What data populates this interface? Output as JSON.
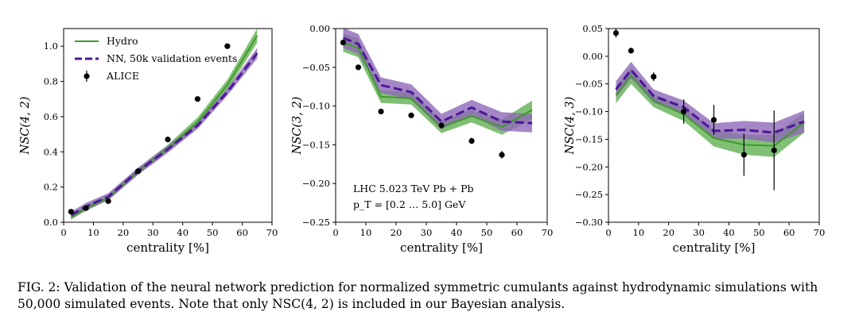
{
  "chart_data": [
    {
      "type": "line",
      "xlabel": "centrality [%]",
      "ylabel": "NSC(4, 2)",
      "xlim": [
        0,
        70
      ],
      "ylim": [
        0.0,
        1.1
      ],
      "xticks": [
        0,
        10,
        20,
        30,
        40,
        50,
        60,
        70
      ],
      "xtick_labels": [
        "0",
        "10",
        "20",
        "30",
        "40",
        "50",
        "60",
        "70"
      ],
      "yticks": [
        0.0,
        0.2,
        0.4,
        0.6,
        0.8,
        1.0
      ],
      "ytick_labels": [
        "0.0",
        "0.2",
        "0.4",
        "0.6",
        "0.8",
        "1.0"
      ],
      "legend": [
        "Hydro",
        "NN, 50k validation events",
        "ALICE"
      ],
      "legend_position": "top-left",
      "x": [
        2.5,
        7.5,
        15,
        25,
        35,
        45,
        55,
        65
      ],
      "series": [
        {
          "name": "Hydro",
          "values": [
            0.03,
            0.08,
            0.14,
            0.29,
            0.42,
            0.57,
            0.78,
            1.06
          ],
          "band": [
            0.015,
            0.015,
            0.015,
            0.02,
            0.02,
            0.025,
            0.03,
            0.04
          ]
        },
        {
          "name": "NN, 50k validation events",
          "values": [
            0.04,
            0.09,
            0.145,
            0.29,
            0.415,
            0.55,
            0.74,
            0.96
          ],
          "band": [
            0.02,
            0.02,
            0.02,
            0.02,
            0.02,
            0.02,
            0.02,
            0.03
          ]
        }
      ],
      "points": {
        "name": "ALICE",
        "x": [
          2.5,
          7.5,
          15,
          25,
          35,
          45,
          55
        ],
        "y": [
          0.06,
          0.08,
          0.12,
          0.29,
          0.47,
          0.7,
          1.0
        ],
        "err": [
          0.005,
          0.005,
          0.01,
          0.01,
          0.01,
          0.01,
          0.01
        ]
      }
    },
    {
      "type": "line",
      "xlabel": "centrality [%]",
      "ylabel": "NSC(3, 2)",
      "xlim": [
        0,
        70
      ],
      "ylim": [
        -0.25,
        0.0
      ],
      "xticks": [
        0,
        10,
        20,
        30,
        40,
        50,
        60,
        70
      ],
      "xtick_labels": [
        "0",
        "10",
        "20",
        "30",
        "40",
        "50",
        "60",
        "70"
      ],
      "yticks": [
        0.0,
        -0.05,
        -0.1,
        -0.15,
        -0.2,
        -0.25
      ],
      "ytick_labels": [
        "0.00",
        "−0.05",
        "−0.10",
        "−0.15",
        "−0.20",
        "−0.25"
      ],
      "x": [
        2.5,
        7.5,
        15,
        25,
        35,
        45,
        55,
        65
      ],
      "series": [
        {
          "name": "Hydro",
          "values": [
            -0.018,
            -0.025,
            -0.088,
            -0.09,
            -0.127,
            -0.113,
            -0.127,
            -0.105
          ],
          "band": [
            0.012,
            0.012,
            0.008,
            0.008,
            0.008,
            0.008,
            0.01,
            0.012
          ]
        },
        {
          "name": "NN, 50k validation events",
          "values": [
            -0.012,
            -0.02,
            -0.073,
            -0.082,
            -0.12,
            -0.102,
            -0.12,
            -0.122
          ],
          "band": [
            0.013,
            0.013,
            0.01,
            0.01,
            0.01,
            0.01,
            0.012,
            0.012
          ]
        }
      ],
      "points": {
        "name": "ALICE",
        "x": [
          2.5,
          7.5,
          15,
          25,
          35,
          45,
          55
        ],
        "y": [
          -0.018,
          -0.05,
          -0.107,
          -0.112,
          -0.125,
          -0.145,
          -0.163
        ],
        "err": [
          0.003,
          0.003,
          0.003,
          0.003,
          0.004,
          0.004,
          0.005
        ]
      },
      "annotation": {
        "line1": "LHC 5.023 TeV Pb + Pb",
        "line2": "p_T = [0.2 … 5.0] GeV"
      }
    },
    {
      "type": "line",
      "xlabel": "centrality [%]",
      "ylabel": "NSC(4, 3)",
      "xlim": [
        0,
        70
      ],
      "ylim": [
        -0.3,
        0.05
      ],
      "xticks": [
        0,
        10,
        20,
        30,
        40,
        50,
        60,
        70
      ],
      "xtick_labels": [
        "0",
        "10",
        "20",
        "30",
        "40",
        "50",
        "60",
        "70"
      ],
      "yticks": [
        0.05,
        0.0,
        -0.05,
        -0.1,
        -0.15,
        -0.2,
        -0.25,
        -0.3
      ],
      "ytick_labels": [
        "0.05",
        "0.00",
        "−0.05",
        "−0.10",
        "−0.15",
        "−0.20",
        "−0.25",
        "−0.30"
      ],
      "x": [
        2.5,
        7.5,
        15,
        25,
        35,
        45,
        55,
        65
      ],
      "series": [
        {
          "name": "Hydro",
          "values": [
            -0.07,
            -0.035,
            -0.08,
            -0.105,
            -0.148,
            -0.16,
            -0.162,
            -0.12
          ],
          "band": [
            0.015,
            0.015,
            0.012,
            0.012,
            0.015,
            0.018,
            0.02,
            0.018
          ]
        },
        {
          "name": "NN, 50k validation events",
          "values": [
            -0.06,
            -0.025,
            -0.072,
            -0.092,
            -0.135,
            -0.133,
            -0.138,
            -0.118
          ],
          "band": [
            0.015,
            0.015,
            0.012,
            0.012,
            0.014,
            0.016,
            0.018,
            0.02
          ]
        }
      ],
      "points": {
        "name": "ALICE",
        "x": [
          2.5,
          7.5,
          15,
          25,
          35,
          45,
          55
        ],
        "y": [
          0.042,
          0.01,
          -0.037,
          -0.1,
          -0.115,
          -0.178,
          -0.17
        ],
        "err": [
          0.008,
          0.005,
          0.008,
          0.022,
          0.027,
          0.038,
          0.072
        ]
      }
    }
  ],
  "colors": {
    "hydro_line": "#3f9a2b",
    "hydro_band": "#6bb55c",
    "nn_line": "#4b1797",
    "nn_band": "#8e68b8",
    "points": "#000000"
  },
  "caption": "FIG. 2: Validation of the neural network prediction for normalized symmetric cumulants against hydrodynamic simulations with 50,000 simulated events. Note that only NSC(4, 2) is included in our Bayesian analysis."
}
